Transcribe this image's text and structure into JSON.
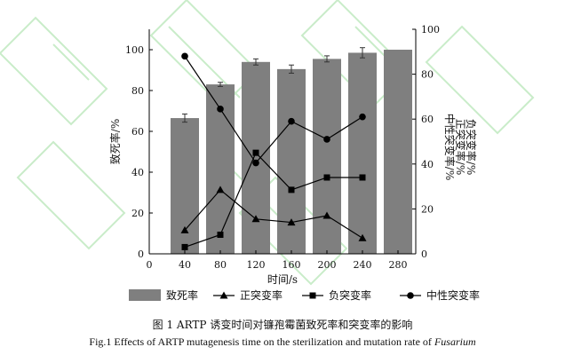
{
  "chart_data": {
    "type": "bar+line",
    "categories": [
      "40",
      "80",
      "120",
      "160",
      "200",
      "240",
      "280"
    ],
    "x": [
      40,
      80,
      120,
      160,
      200,
      240,
      280
    ],
    "xlabel": "时间/s",
    "x_ticks": [
      "0",
      "40",
      "80",
      "120",
      "160",
      "200",
      "240",
      "280"
    ],
    "ylabel_left": "致死率/%",
    "ylim_left": [
      0,
      110
    ],
    "y_ticks_left": [
      "0",
      "20",
      "40",
      "60",
      "80",
      "100"
    ],
    "ylabel_right": [
      "中性突变率/%",
      "正突变率/%",
      "负突变率/%"
    ],
    "ylim_right": [
      0,
      100
    ],
    "y_ticks_right": [
      "0",
      "20",
      "40",
      "60",
      "80",
      "100"
    ],
    "grid": false,
    "legend_position": "bottom",
    "bars": {
      "name": "致死率",
      "color": "#7f7f7f",
      "values": [
        66.5,
        83,
        94,
        90.5,
        95.5,
        98.5,
        100
      ],
      "errors": [
        2,
        1,
        1.5,
        2,
        1.5,
        2.5,
        0
      ]
    },
    "series": [
      {
        "name": "正突变率",
        "marker": "triangle",
        "axis": "right",
        "x": [
          40,
          80,
          120,
          160,
          200,
          240
        ],
        "values": [
          10.5,
          28.5,
          15.5,
          14,
          17,
          7
        ]
      },
      {
        "name": "负突变率",
        "marker": "square",
        "axis": "right",
        "x": [
          40,
          80,
          120,
          160,
          200,
          240
        ],
        "values": [
          3,
          8.5,
          45,
          28.5,
          34,
          34
        ]
      },
      {
        "name": "中性突变率",
        "marker": "circle",
        "axis": "right",
        "x": [
          40,
          80,
          120,
          160,
          200,
          240
        ],
        "values": [
          88,
          64.5,
          40.5,
          59,
          51,
          61
        ]
      }
    ]
  },
  "caption": {
    "zh": "图 1 ARTP 诱变时间对镰孢霉菌致死率和突变率的影响",
    "en_prefix": "Fig.1 Effects of ARTP mutagenesis time on the sterilization and mutation rate of ",
    "en_italic": "Fusarium"
  },
  "colors": {
    "bar": "#7f7f7f",
    "line": "#000000",
    "axis": "#000000",
    "watermark": "#9ddc9d"
  }
}
